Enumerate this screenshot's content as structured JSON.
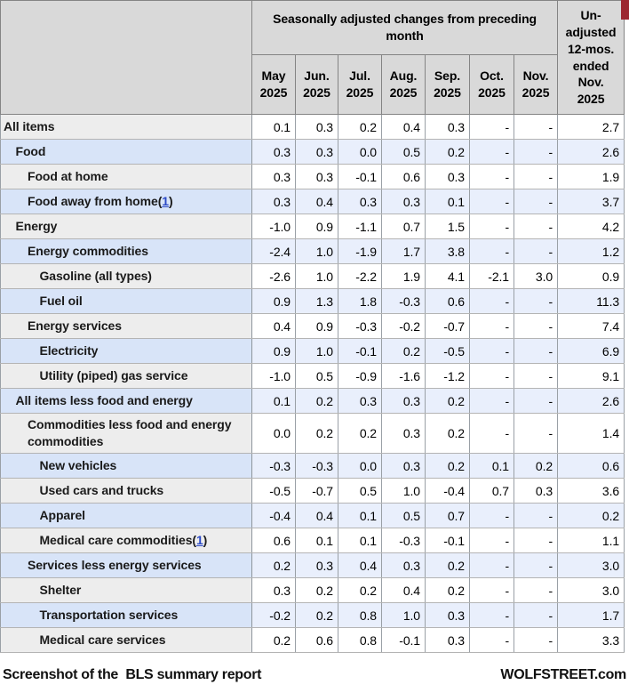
{
  "header": {
    "group_label": "Seasonally adjusted changes from preceding month",
    "months": [
      "May\n2025",
      "Jun.\n2025",
      "Jul.\n2025",
      "Aug.\n2025",
      "Sep.\n2025",
      "Oct.\n2025",
      "Nov.\n2025"
    ],
    "unadjusted_label": "Un-\nadjusted\n12-mos.\nended\nNov.\n2025"
  },
  "table": {
    "rows": [
      {
        "label": "All items",
        "indent": 0,
        "values": [
          "0.1",
          "0.3",
          "0.2",
          "0.4",
          "0.3",
          "-",
          "-",
          "2.7"
        ]
      },
      {
        "label": "Food",
        "indent": 1,
        "values": [
          "0.3",
          "0.3",
          "0.0",
          "0.5",
          "0.2",
          "-",
          "-",
          "2.6"
        ]
      },
      {
        "label": "Food at home",
        "indent": 2,
        "values": [
          "0.3",
          "0.3",
          "-0.1",
          "0.6",
          "0.3",
          "-",
          "-",
          "1.9"
        ]
      },
      {
        "label": "Food away from home",
        "footnote": "1",
        "indent": 2,
        "values": [
          "0.3",
          "0.4",
          "0.3",
          "0.3",
          "0.1",
          "-",
          "-",
          "3.7"
        ]
      },
      {
        "label": "Energy",
        "indent": 1,
        "values": [
          "-1.0",
          "0.9",
          "-1.1",
          "0.7",
          "1.5",
          "-",
          "-",
          "4.2"
        ]
      },
      {
        "label": "Energy commodities",
        "indent": 2,
        "values": [
          "-2.4",
          "1.0",
          "-1.9",
          "1.7",
          "3.8",
          "-",
          "-",
          "1.2"
        ]
      },
      {
        "label": "Gasoline (all types)",
        "indent": 3,
        "values": [
          "-2.6",
          "1.0",
          "-2.2",
          "1.9",
          "4.1",
          "-2.1",
          "3.0",
          "0.9"
        ]
      },
      {
        "label": "Fuel oil",
        "indent": 3,
        "values": [
          "0.9",
          "1.3",
          "1.8",
          "-0.3",
          "0.6",
          "-",
          "-",
          "11.3"
        ]
      },
      {
        "label": "Energy services",
        "indent": 2,
        "values": [
          "0.4",
          "0.9",
          "-0.3",
          "-0.2",
          "-0.7",
          "-",
          "-",
          "7.4"
        ]
      },
      {
        "label": "Electricity",
        "indent": 3,
        "values": [
          "0.9",
          "1.0",
          "-0.1",
          "0.2",
          "-0.5",
          "-",
          "-",
          "6.9"
        ]
      },
      {
        "label": "Utility (piped) gas service",
        "indent": 3,
        "values": [
          "-1.0",
          "0.5",
          "-0.9",
          "-1.6",
          "-1.2",
          "-",
          "-",
          "9.1"
        ]
      },
      {
        "label": "All items less food and energy",
        "indent": 1,
        "values": [
          "0.1",
          "0.2",
          "0.3",
          "0.3",
          "0.2",
          "-",
          "-",
          "2.6"
        ]
      },
      {
        "label": "Commodities less food and energy commodities",
        "indent": 2,
        "values": [
          "0.0",
          "0.2",
          "0.2",
          "0.3",
          "0.2",
          "-",
          "-",
          "1.4"
        ]
      },
      {
        "label": "New vehicles",
        "indent": 3,
        "values": [
          "-0.3",
          "-0.3",
          "0.0",
          "0.3",
          "0.2",
          "0.1",
          "0.2",
          "0.6"
        ]
      },
      {
        "label": "Used cars and trucks",
        "indent": 3,
        "values": [
          "-0.5",
          "-0.7",
          "0.5",
          "1.0",
          "-0.4",
          "0.7",
          "0.3",
          "3.6"
        ]
      },
      {
        "label": "Apparel",
        "indent": 3,
        "values": [
          "-0.4",
          "0.4",
          "0.1",
          "0.5",
          "0.7",
          "-",
          "-",
          "0.2"
        ]
      },
      {
        "label": "Medical care commodities",
        "footnote": "1",
        "indent": 3,
        "values": [
          "0.6",
          "0.1",
          "0.1",
          "-0.3",
          "-0.1",
          "-",
          "-",
          "1.1"
        ]
      },
      {
        "label": "Services less energy services",
        "indent": 2,
        "values": [
          "0.2",
          "0.3",
          "0.4",
          "0.3",
          "0.2",
          "-",
          "-",
          "3.0"
        ]
      },
      {
        "label": "Shelter",
        "indent": 3,
        "values": [
          "0.3",
          "0.2",
          "0.2",
          "0.4",
          "0.2",
          "-",
          "-",
          "3.0"
        ]
      },
      {
        "label": "Transportation services",
        "indent": 3,
        "values": [
          "-0.2",
          "0.2",
          "0.8",
          "1.0",
          "0.3",
          "-",
          "-",
          "1.7"
        ]
      },
      {
        "label": "Medical care services",
        "indent": 3,
        "values": [
          "0.2",
          "0.6",
          "0.8",
          "-0.1",
          "0.3",
          "-",
          "-",
          "3.3"
        ]
      }
    ]
  },
  "footer": {
    "left": "Screenshot of the  BLS summary report",
    "right": "WOLFSTREET.com"
  },
  "colors": {
    "header_bg": "#d9d9d9",
    "row_blue_label": "#d8e4f8",
    "row_blue_cell": "#e9effc",
    "row_white_label": "#ededed",
    "row_white_cell": "#ffffff",
    "accent_red": "#9c2730",
    "footnote_link_blue": "#2b49c6"
  }
}
